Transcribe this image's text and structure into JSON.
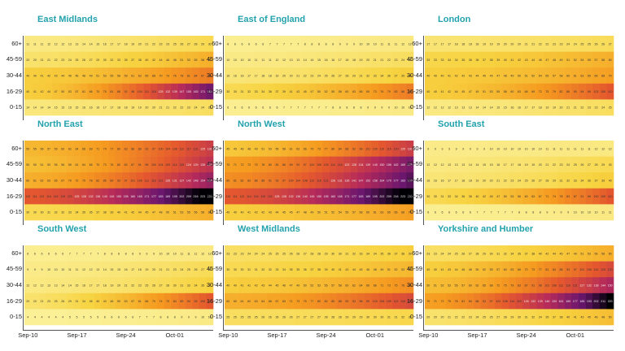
{
  "chart_data": {
    "type": "heatmap",
    "age_groups": [
      "60+",
      "45-59",
      "30-44",
      "16-29",
      "0-15"
    ],
    "x_ticks": [
      "Sep-10",
      "Sep-17",
      "Sep-24",
      "Oct-01"
    ],
    "n_days": 27,
    "color_scale": [
      "#fbf3a0",
      "#f7d340",
      "#f59a20",
      "#e4572e",
      "#b52a5a",
      "#6b176e",
      "#000004"
    ],
    "color_max": 220,
    "panels": [
      {
        "title": "East Midlands",
        "start": [
          11,
          20,
          40,
          40,
          14
        ],
        "end": [
          30,
          60,
          90,
          180,
          25
        ]
      },
      {
        "title": "East of England",
        "start": [
          6,
          10,
          16,
          30,
          6
        ],
        "end": [
          12,
          25,
          40,
          90,
          10
        ]
      },
      {
        "title": "London",
        "start": [
          17,
          33,
          40,
          40,
          12
        ],
        "end": [
          27,
          60,
          70,
          110,
          25
        ]
      },
      {
        "title": "North East",
        "start": [
          55,
          50,
          60,
          110,
          30
        ],
        "end": [
          130,
          140,
          160,
          230,
          60
        ]
      },
      {
        "title": "North West",
        "start": [
          45,
          70,
          80,
          110,
          40
        ],
        "end": [
          130,
          175,
          190,
          230,
          70
        ]
      },
      {
        "title": "South East",
        "start": [
          9,
          12,
          16,
          30,
          6
        ],
        "end": [
          12,
          30,
          40,
          110,
          11
        ]
      },
      {
        "title": "South West",
        "start": [
          6,
          9,
          12,
          20,
          4
        ],
        "end": [
          12,
          28,
          37,
          110,
          10
        ]
      },
      {
        "title": "West Midlands",
        "start": [
          23,
          30,
          40,
          60,
          25
        ],
        "end": [
          39,
          55,
          80,
          120,
          32
        ]
      },
      {
        "title": "Yorkshire and Humber",
        "start": [
          23,
          40,
          50,
          70,
          20
        ],
        "end": [
          60,
          120,
          150,
          220,
          50
        ]
      }
    ]
  }
}
